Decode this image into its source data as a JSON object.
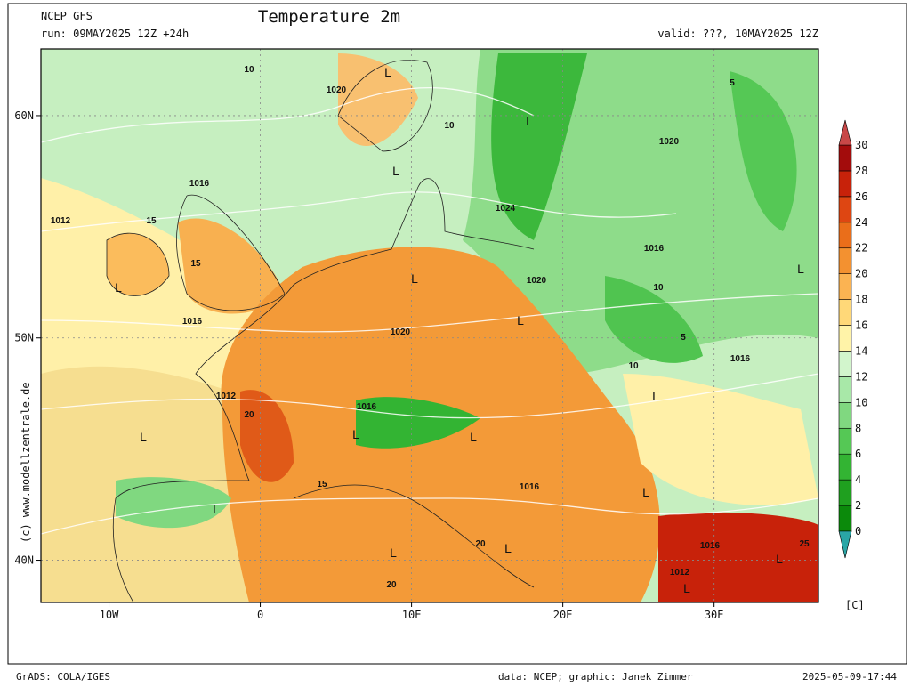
{
  "header": {
    "model": "NCEP GFS",
    "run": "run: 09MAY2025 12Z +24h",
    "title": "Temperature 2m",
    "valid": "valid: ???, 10MAY2025 12Z"
  },
  "side_text": "(c) www.modellzentrale.de",
  "map": {
    "lonlim": [
      -14.5,
      36.9
    ],
    "latlim": [
      38.1,
      63
    ],
    "lat_ticks": [
      {
        "value": 60,
        "label": "60N"
      },
      {
        "value": 50,
        "label": "50N"
      },
      {
        "value": 40,
        "label": "40N"
      }
    ],
    "lon_ticks": [
      {
        "value": -10,
        "label": "10W"
      },
      0,
      {
        "value": 10,
        "label": "10E"
      },
      {
        "value": 20,
        "label": "20E"
      },
      {
        "value": 30,
        "label": "30E"
      }
    ],
    "labels": [
      "1020",
      "L",
      "10",
      "L",
      "1020",
      "5",
      "10",
      "L",
      "1016",
      "1012",
      "15",
      "1024",
      "1016",
      "L",
      "L",
      "15",
      "L",
      "1020",
      "L",
      "1016",
      "1020",
      "10",
      "5",
      "10",
      "1016",
      "1012",
      "1016",
      "L",
      "L",
      "L",
      "20",
      "L",
      "1016",
      "L",
      "L",
      "1016",
      "L",
      "L",
      "1012",
      "L",
      "L",
      "15",
      "20",
      "20",
      "25"
    ]
  },
  "colorbar": {
    "ticks": [
      0,
      2,
      4,
      6,
      8,
      10,
      12,
      14,
      16,
      18,
      20,
      22,
      24,
      26,
      28,
      30
    ],
    "colors": [
      "#0b8a0b",
      "#1fa01f",
      "#33b433",
      "#55c855",
      "#80d880",
      "#a8e8a8",
      "#d2f5cc",
      "#fff3a8",
      "#ffd878",
      "#fbb352",
      "#f39130",
      "#ea6e1a",
      "#de4612",
      "#c8220a",
      "#a30c0c"
    ],
    "under_color": "#2aa6a6",
    "over_color": "#c84848",
    "unit": "[C]"
  },
  "footer": {
    "left": "GrADS: COLA/IGES",
    "center": "data: NCEP; graphic: Janek Zimmer",
    "right": "2025-05-09-17:44"
  }
}
